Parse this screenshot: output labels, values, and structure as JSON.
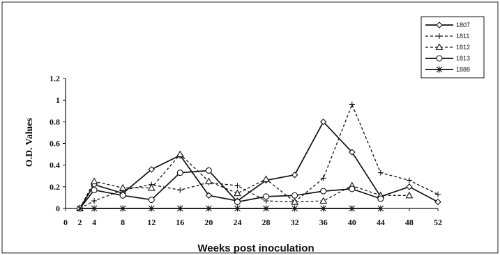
{
  "chart_data": {
    "type": "line",
    "title": "",
    "xlabel": "Weeks post inoculation",
    "ylabel": "O.D. Values",
    "xlim": [
      0,
      52
    ],
    "ylim": [
      0,
      1.2
    ],
    "x_ticks": [
      0,
      2,
      4,
      8,
      12,
      16,
      20,
      24,
      28,
      32,
      36,
      40,
      44,
      48,
      52
    ],
    "y_ticks": [
      "0",
      "0.2",
      "0.4",
      "0.6",
      "0.8",
      "1",
      "1.2"
    ],
    "legend_position": "top-right",
    "grid": false,
    "series": [
      {
        "name": "1807",
        "marker": "diamond",
        "dash": "solid",
        "points": [
          [
            2,
            0
          ],
          [
            4,
            0.22
          ],
          [
            8,
            0.14
          ],
          [
            12,
            0.36
          ],
          [
            16,
            0.49
          ],
          [
            20,
            0.12
          ],
          [
            24,
            0.07
          ],
          [
            28,
            0.26
          ],
          [
            32,
            0.31
          ],
          [
            36,
            0.8
          ],
          [
            40,
            0.52
          ],
          [
            44,
            0.11
          ],
          [
            48,
            0.2
          ],
          [
            52,
            0.06
          ]
        ]
      },
      {
        "name": "1811",
        "marker": "plus",
        "dash": "dashed",
        "points": [
          [
            2,
            0
          ],
          [
            4,
            0.07
          ],
          [
            8,
            0.17
          ],
          [
            12,
            0.22
          ],
          [
            16,
            0.17
          ],
          [
            20,
            0.24
          ],
          [
            24,
            0.21
          ],
          [
            28,
            0.07
          ],
          [
            32,
            0.06
          ],
          [
            36,
            0.28
          ],
          [
            40,
            0.96
          ],
          [
            44,
            0.33
          ],
          [
            48,
            0.26
          ],
          [
            52,
            0.13
          ]
        ]
      },
      {
        "name": "1812",
        "marker": "triangle",
        "dash": "dashed",
        "points": [
          [
            2,
            0
          ],
          [
            4,
            0.25
          ],
          [
            8,
            0.19
          ],
          [
            12,
            0.19
          ],
          [
            16,
            0.5
          ],
          [
            20,
            0.25
          ],
          [
            24,
            0.14
          ],
          [
            28,
            0.27
          ],
          [
            32,
            0.06
          ],
          [
            36,
            0.07
          ],
          [
            40,
            0.21
          ],
          [
            44,
            0.12
          ],
          [
            48,
            0.12
          ]
        ]
      },
      {
        "name": "1813",
        "marker": "circle",
        "dash": "solid",
        "points": [
          [
            2,
            0
          ],
          [
            4,
            0.17
          ],
          [
            8,
            0.12
          ],
          [
            12,
            0.08
          ],
          [
            16,
            0.33
          ],
          [
            20,
            0.35
          ],
          [
            24,
            0.06
          ],
          [
            28,
            0.11
          ],
          [
            32,
            0.12
          ],
          [
            36,
            0.16
          ],
          [
            40,
            0.18
          ],
          [
            44,
            0.09
          ]
        ]
      },
      {
        "name": "1888",
        "marker": "star",
        "dash": "solid",
        "points": [
          [
            2,
            0
          ],
          [
            4,
            0
          ],
          [
            8,
            0
          ],
          [
            12,
            0
          ],
          [
            16,
            0
          ],
          [
            20,
            0
          ],
          [
            24,
            0
          ],
          [
            28,
            0
          ],
          [
            32,
            0
          ],
          [
            36,
            0
          ],
          [
            40,
            0
          ],
          [
            44,
            0
          ]
        ]
      }
    ]
  }
}
